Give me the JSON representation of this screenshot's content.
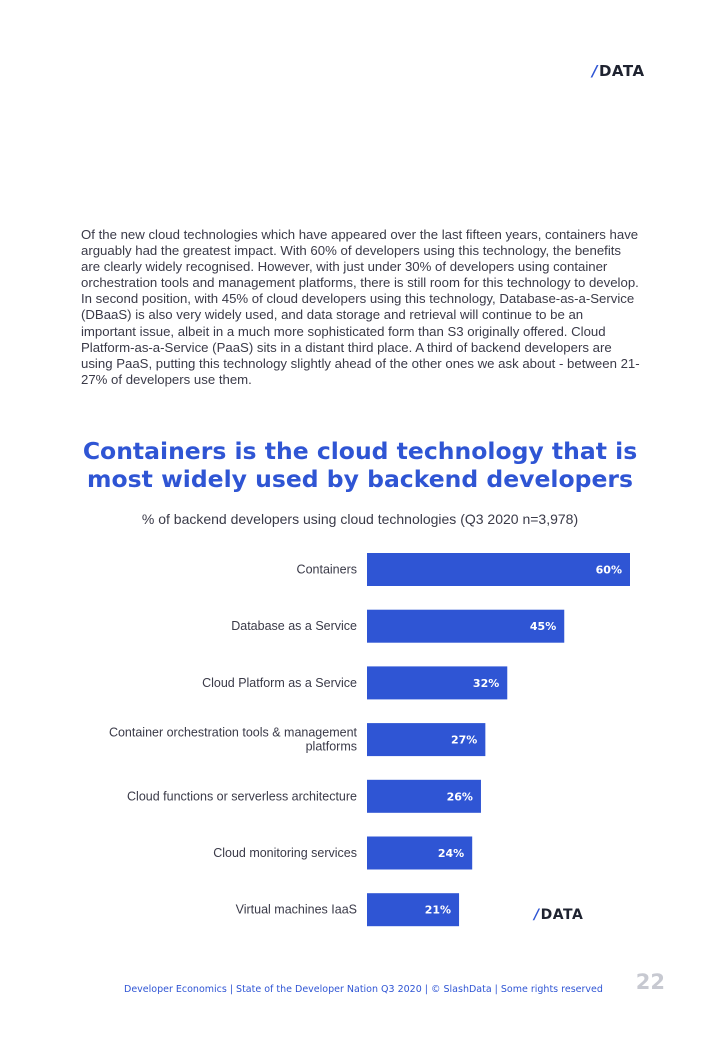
{
  "brand": {
    "slash": "/",
    "name": "DATA"
  },
  "intro_text": "Of the new cloud technologies which have appeared over the last fifteen years, containers have arguably had the greatest impact. With 60% of developers using this technology, the benefits are clearly widely recognised. However, with just under 30% of developers using container orchestration tools and management platforms, there is still room for this technology to develop. In second position, with 45% of cloud developers using this technology, Database-as-a-Service (DBaaS) is also very widely used, and data storage and retrieval will continue to be an important issue, albeit in a much more sophisticated form than S3 originally offered. Cloud Platform-as-a-Service (PaaS) sits in a distant third place. A third of backend developers are using PaaS, putting this technology slightly ahead of the other ones we ask about - between 21-27% of developers use them.",
  "chart_data": {
    "type": "bar",
    "orientation": "horizontal",
    "title": "Containers is the cloud technology that is most widely used by backend developers",
    "subtitle": "% of backend developers using cloud technologies (Q3 2020 n=3,978)",
    "categories": [
      [
        "Containers"
      ],
      [
        "Database as a Service"
      ],
      [
        "Cloud Platform as a Service"
      ],
      [
        "Container orchestration tools & management",
        "platforms"
      ],
      [
        "Cloud functions or serverless architecture"
      ],
      [
        "Cloud monitoring services"
      ],
      [
        "Virtual machines IaaS"
      ]
    ],
    "values": [
      60,
      45,
      32,
      27,
      26,
      24,
      21
    ],
    "value_labels": [
      "60%",
      "45%",
      "32%",
      "27%",
      "26%",
      "24%",
      "21%"
    ],
    "unit": "%",
    "xlim": [
      0,
      60
    ],
    "bar_color": "#2f55d4"
  },
  "footer": {
    "text": "Developer Economics | State of the Developer Nation Q3 2020 | © SlashData | Some rights reserved",
    "page_number": "22"
  }
}
